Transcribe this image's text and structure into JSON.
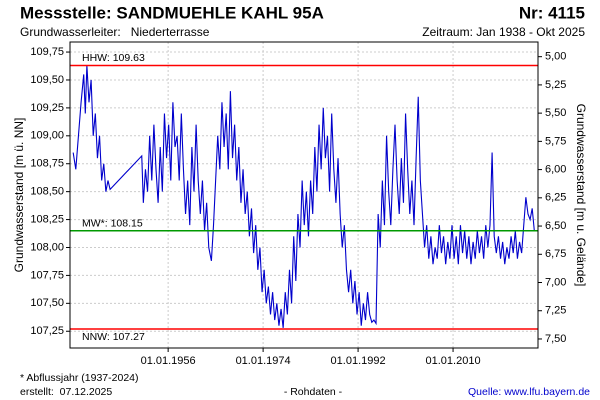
{
  "chart_data": {
    "type": "line",
    "title": "Messstelle: SANDMUEHLE KAHL 95A",
    "number": "Nr: 4115",
    "subtitle": "Grundwasserleiter:   Niederterrasse",
    "period": "Zeitraum: Jan 1938 - Okt 2025",
    "ylabel": "Grundwasserstand [m ü. NN]",
    "y2label": "Grundwasserstand [m u. Gelände]",
    "color": "#0000cc",
    "grid": true,
    "xlim": [
      1937.4,
      2026.1
    ],
    "xticks": [
      {
        "value": 1956,
        "label": "01.01.1956"
      },
      {
        "value": 1974,
        "label": "01.01.1974"
      },
      {
        "value": 1992,
        "label": "01.01.1992"
      },
      {
        "value": 2010,
        "label": "01.01.2010"
      }
    ],
    "ylim": [
      107.1,
      109.84
    ],
    "yticks": [
      {
        "value": 107.25,
        "label": "107,25"
      },
      {
        "value": 107.5,
        "label": "107,50"
      },
      {
        "value": 107.75,
        "label": "107,75"
      },
      {
        "value": 108,
        "label": "108,00"
      },
      {
        "value": 108.25,
        "label": "108,25"
      },
      {
        "value": 108.5,
        "label": "108,50"
      },
      {
        "value": 108.75,
        "label": "108,75"
      },
      {
        "value": 109,
        "label": "109,00"
      },
      {
        "value": 109.25,
        "label": "109,25"
      },
      {
        "value": 109.5,
        "label": "109,50"
      },
      {
        "value": 109.75,
        "label": "109,75"
      }
    ],
    "y2lim": [
      7.58,
      4.87
    ],
    "y2ticks": [
      {
        "value": 5,
        "label": "5,00"
      },
      {
        "value": 5.25,
        "label": "5,25"
      },
      {
        "value": 5.5,
        "label": "5,50"
      },
      {
        "value": 5.75,
        "label": "5,75"
      },
      {
        "value": 6,
        "label": "6,00"
      },
      {
        "value": 6.25,
        "label": "6,25"
      },
      {
        "value": 6.5,
        "label": "6,50"
      },
      {
        "value": 6.75,
        "label": "6,75"
      },
      {
        "value": 7,
        "label": "7,00"
      },
      {
        "value": 7.25,
        "label": "7,25"
      },
      {
        "value": 7.5,
        "label": "7,50"
      }
    ],
    "reference_lines": [
      {
        "label": "HHW: 109.63",
        "value": 109.63,
        "color": "#ff0000"
      },
      {
        "label": "MW*: 108.15",
        "value": 108.15,
        "color": "#009900"
      },
      {
        "label": "NNW: 107.27",
        "value": 107.27,
        "color": "#ff0000"
      }
    ],
    "x": [
      1938.0,
      1938.5,
      1939.0,
      1939.5,
      1940.0,
      1940.3,
      1940.6,
      1941.0,
      1941.4,
      1941.8,
      1942.2,
      1942.6,
      1943.0,
      1943.4,
      1943.8,
      1944.2,
      1944.6,
      1945.0,
      1951.0,
      1951.3,
      1951.7,
      1952.1,
      1952.5,
      1952.9,
      1953.3,
      1953.7,
      1954.1,
      1954.5,
      1954.9,
      1955.3,
      1955.7,
      1956.1,
      1956.5,
      1956.9,
      1957.3,
      1957.7,
      1958.1,
      1958.5,
      1958.9,
      1959.3,
      1959.7,
      1960.1,
      1960.5,
      1960.9,
      1961.3,
      1961.7,
      1962.1,
      1962.5,
      1962.9,
      1963.3,
      1963.7,
      1964.2,
      1964.6,
      1965.0,
      1965.4,
      1965.8,
      1966.2,
      1966.6,
      1967.0,
      1967.4,
      1967.8,
      1968.2,
      1968.6,
      1969.0,
      1969.4,
      1969.8,
      1970.2,
      1970.6,
      1971.0,
      1971.4,
      1971.8,
      1972.2,
      1972.6,
      1973.0,
      1973.4,
      1973.8,
      1974.2,
      1974.6,
      1975.0,
      1975.4,
      1975.8,
      1976.2,
      1976.6,
      1977.0,
      1977.4,
      1977.8,
      1978.2,
      1978.6,
      1979.0,
      1979.4,
      1979.8,
      1980.2,
      1980.6,
      1981.0,
      1981.4,
      1981.8,
      1982.2,
      1982.6,
      1983.0,
      1983.4,
      1983.8,
      1984.2,
      1984.6,
      1985.0,
      1985.4,
      1985.8,
      1986.2,
      1986.6,
      1987.0,
      1987.4,
      1987.8,
      1988.2,
      1988.6,
      1989.0,
      1989.4,
      1989.8,
      1990.2,
      1990.6,
      1991.0,
      1991.4,
      1991.8,
      1992.2,
      1992.6,
      1993.0,
      1993.4,
      1993.8,
      1994.2,
      1994.6,
      1995.0,
      1995.4,
      1995.8,
      1996.2,
      1996.6,
      1997.0,
      1997.4,
      1997.8,
      1998.2,
      1998.6,
      1999.0,
      1999.4,
      1999.8,
      2000.2,
      2000.6,
      2001.0,
      2001.4,
      2001.8,
      2002.2,
      2002.6,
      2003.0,
      2003.4,
      2003.8,
      2004.2,
      2004.6,
      2005.0,
      2005.4,
      2005.8,
      2006.2,
      2006.6,
      2007.0,
      2007.4,
      2007.8,
      2008.2,
      2008.6,
      2009.0,
      2009.4,
      2009.8,
      2010.2,
      2010.6,
      2011.0,
      2011.4,
      2011.8,
      2012.2,
      2012.6,
      2013.0,
      2013.4,
      2013.8,
      2014.2,
      2014.6,
      2015.0,
      2015.4,
      2015.8,
      2016.2,
      2016.6,
      2017.0,
      2017.4,
      2017.8,
      2018.2,
      2018.6,
      2019.0,
      2019.4,
      2019.8,
      2020.2,
      2020.6,
      2021.0,
      2021.4,
      2021.8,
      2022.2,
      2022.6,
      2023.0,
      2023.4,
      2023.8,
      2024.2,
      2024.6,
      2025.0,
      2025.4
    ],
    "values": [
      108.85,
      108.7,
      109.0,
      109.3,
      109.55,
      109.2,
      109.63,
      109.3,
      109.5,
      109.0,
      109.2,
      108.8,
      109.0,
      108.6,
      108.75,
      108.5,
      108.6,
      108.52,
      108.82,
      108.4,
      108.7,
      108.5,
      109.0,
      108.6,
      109.1,
      108.7,
      108.4,
      108.9,
      108.5,
      109.2,
      108.8,
      109.1,
      108.6,
      109.3,
      108.9,
      109.0,
      108.6,
      109.2,
      108.7,
      108.3,
      108.6,
      108.2,
      108.9,
      108.5,
      109.1,
      108.6,
      108.3,
      108.6,
      108.15,
      108.4,
      108.0,
      107.88,
      108.2,
      108.6,
      109.0,
      108.7,
      109.3,
      108.9,
      109.2,
      108.7,
      109.4,
      108.8,
      109.1,
      108.6,
      108.9,
      108.4,
      108.7,
      108.3,
      108.5,
      108.1,
      108.35,
      107.95,
      108.2,
      107.8,
      108.0,
      107.6,
      107.8,
      107.5,
      107.65,
      107.4,
      107.6,
      107.35,
      107.5,
      107.3,
      107.45,
      107.28,
      107.6,
      107.4,
      107.8,
      107.5,
      108.1,
      107.7,
      108.3,
      108.0,
      108.6,
      108.2,
      108.5,
      108.1,
      108.6,
      108.3,
      108.9,
      108.5,
      109.1,
      108.7,
      109.25,
      108.8,
      109.0,
      108.5,
      109.2,
      108.7,
      108.4,
      108.8,
      108.3,
      108.0,
      108.2,
      107.8,
      107.6,
      107.8,
      107.5,
      107.7,
      107.4,
      107.6,
      107.3,
      107.5,
      107.35,
      107.6,
      107.4,
      107.33,
      107.35,
      107.32,
      108.3,
      108.0,
      108.6,
      108.2,
      109.0,
      108.5,
      108.2,
      108.7,
      109.1,
      108.6,
      108.3,
      108.8,
      108.4,
      109.2,
      108.7,
      108.3,
      108.6,
      108.2,
      108.8,
      109.35,
      108.6,
      108.3,
      108.0,
      108.2,
      107.9,
      108.1,
      107.85,
      108.0,
      107.9,
      108.2,
      107.95,
      108.1,
      107.85,
      108.05,
      107.9,
      108.2,
      107.9,
      108.1,
      107.85,
      108.2,
      107.95,
      108.15,
      107.9,
      108.1,
      107.85,
      108.05,
      107.9,
      108.15,
      107.95,
      108.1,
      107.9,
      108.2,
      108.0,
      108.2,
      108.85,
      108.1,
      107.95,
      108.1,
      107.9,
      108.05,
      107.85,
      108.0,
      107.9,
      108.1,
      107.95,
      108.15,
      107.9,
      108.05,
      107.95,
      108.2,
      108.45,
      108.3,
      108.25,
      108.35,
      108.15
    ],
    "footnote": "* Abflussjahr (1937-2024)",
    "created": "erstellt:  07.12.2025",
    "data_note": "- Rohdaten -",
    "source": "Quelle: www.lfu.bayern.de"
  }
}
